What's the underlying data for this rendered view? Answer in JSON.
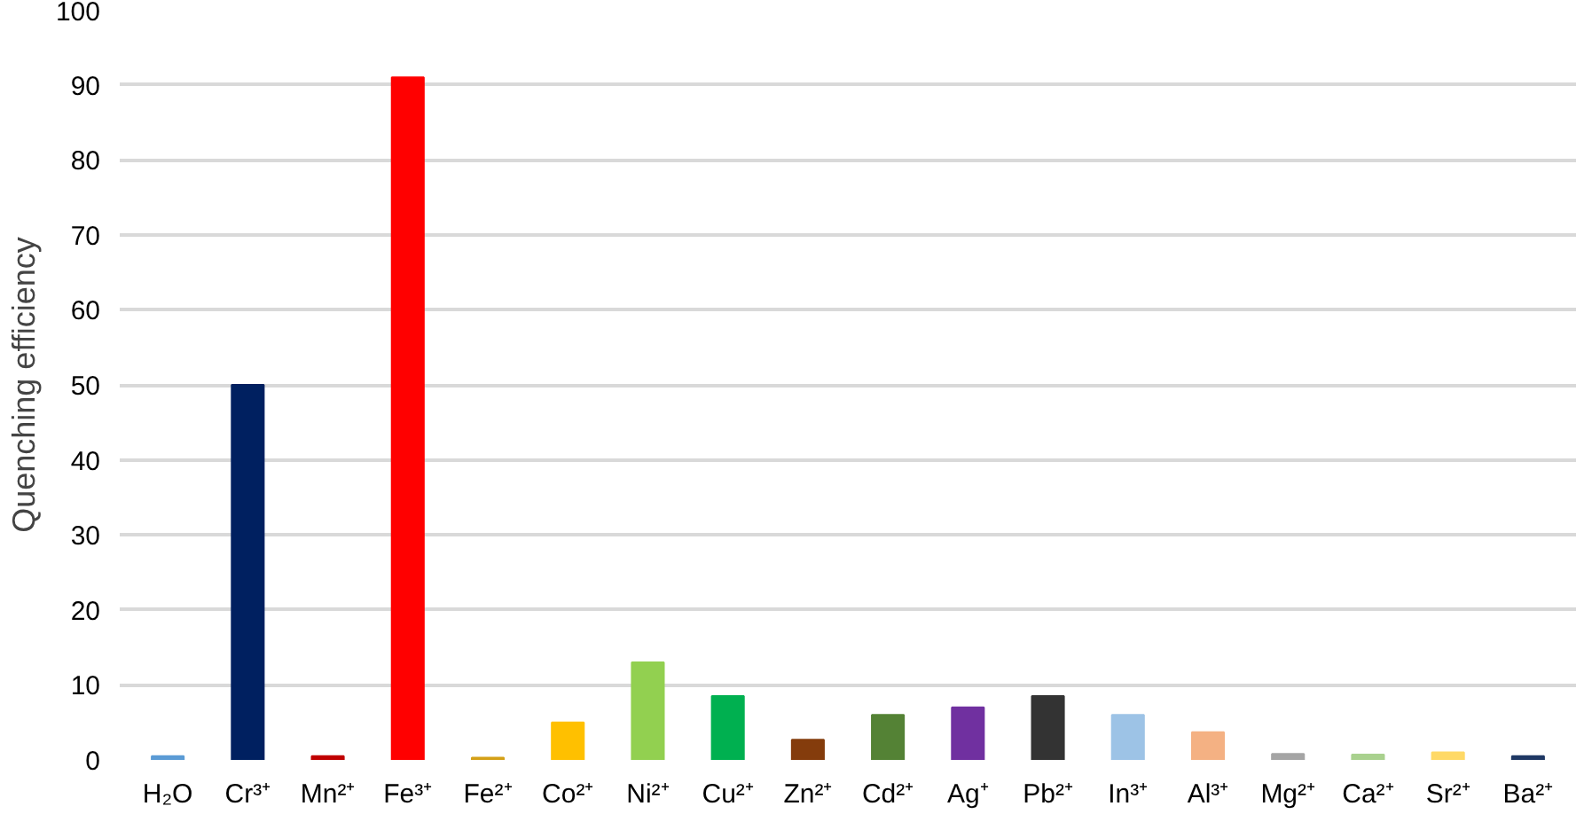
{
  "chart_data": {
    "type": "bar",
    "ylabel": "Quenching efficiency",
    "categories": [
      "H₂O",
      "Cr³⁺",
      "Mn²⁺",
      "Fe³⁺",
      "Fe²⁺",
      "Co²⁺",
      "Ni²⁺",
      "Cu²⁺",
      "Zn²⁺",
      "Cd²⁺",
      "Ag⁺",
      "Pb²⁺",
      "In³⁺",
      "Al³⁺",
      "Mg²⁺",
      "Ca²⁺",
      "Sr²⁺",
      "Ba²⁺"
    ],
    "values": [
      0.5,
      50,
      0.5,
      91,
      0.3,
      5,
      13,
      8.5,
      2.7,
      6,
      7,
      8.5,
      6,
      3.7,
      0.8,
      0.7,
      1,
      0.5
    ],
    "colors": [
      "#5b9bd5",
      "#002060",
      "#c00000",
      "#ff0000",
      "#d4a017",
      "#ffc000",
      "#92d050",
      "#00b050",
      "#843c0c",
      "#548235",
      "#7030a0",
      "#333333",
      "#9dc3e6",
      "#f4b183",
      "#a5a5a5",
      "#a9d18e",
      "#ffd966",
      "#1f3864"
    ],
    "ylim": [
      0,
      100
    ],
    "yticks": [
      0,
      10,
      20,
      30,
      40,
      50,
      60,
      70,
      80,
      90,
      100
    ],
    "grid": "y"
  }
}
